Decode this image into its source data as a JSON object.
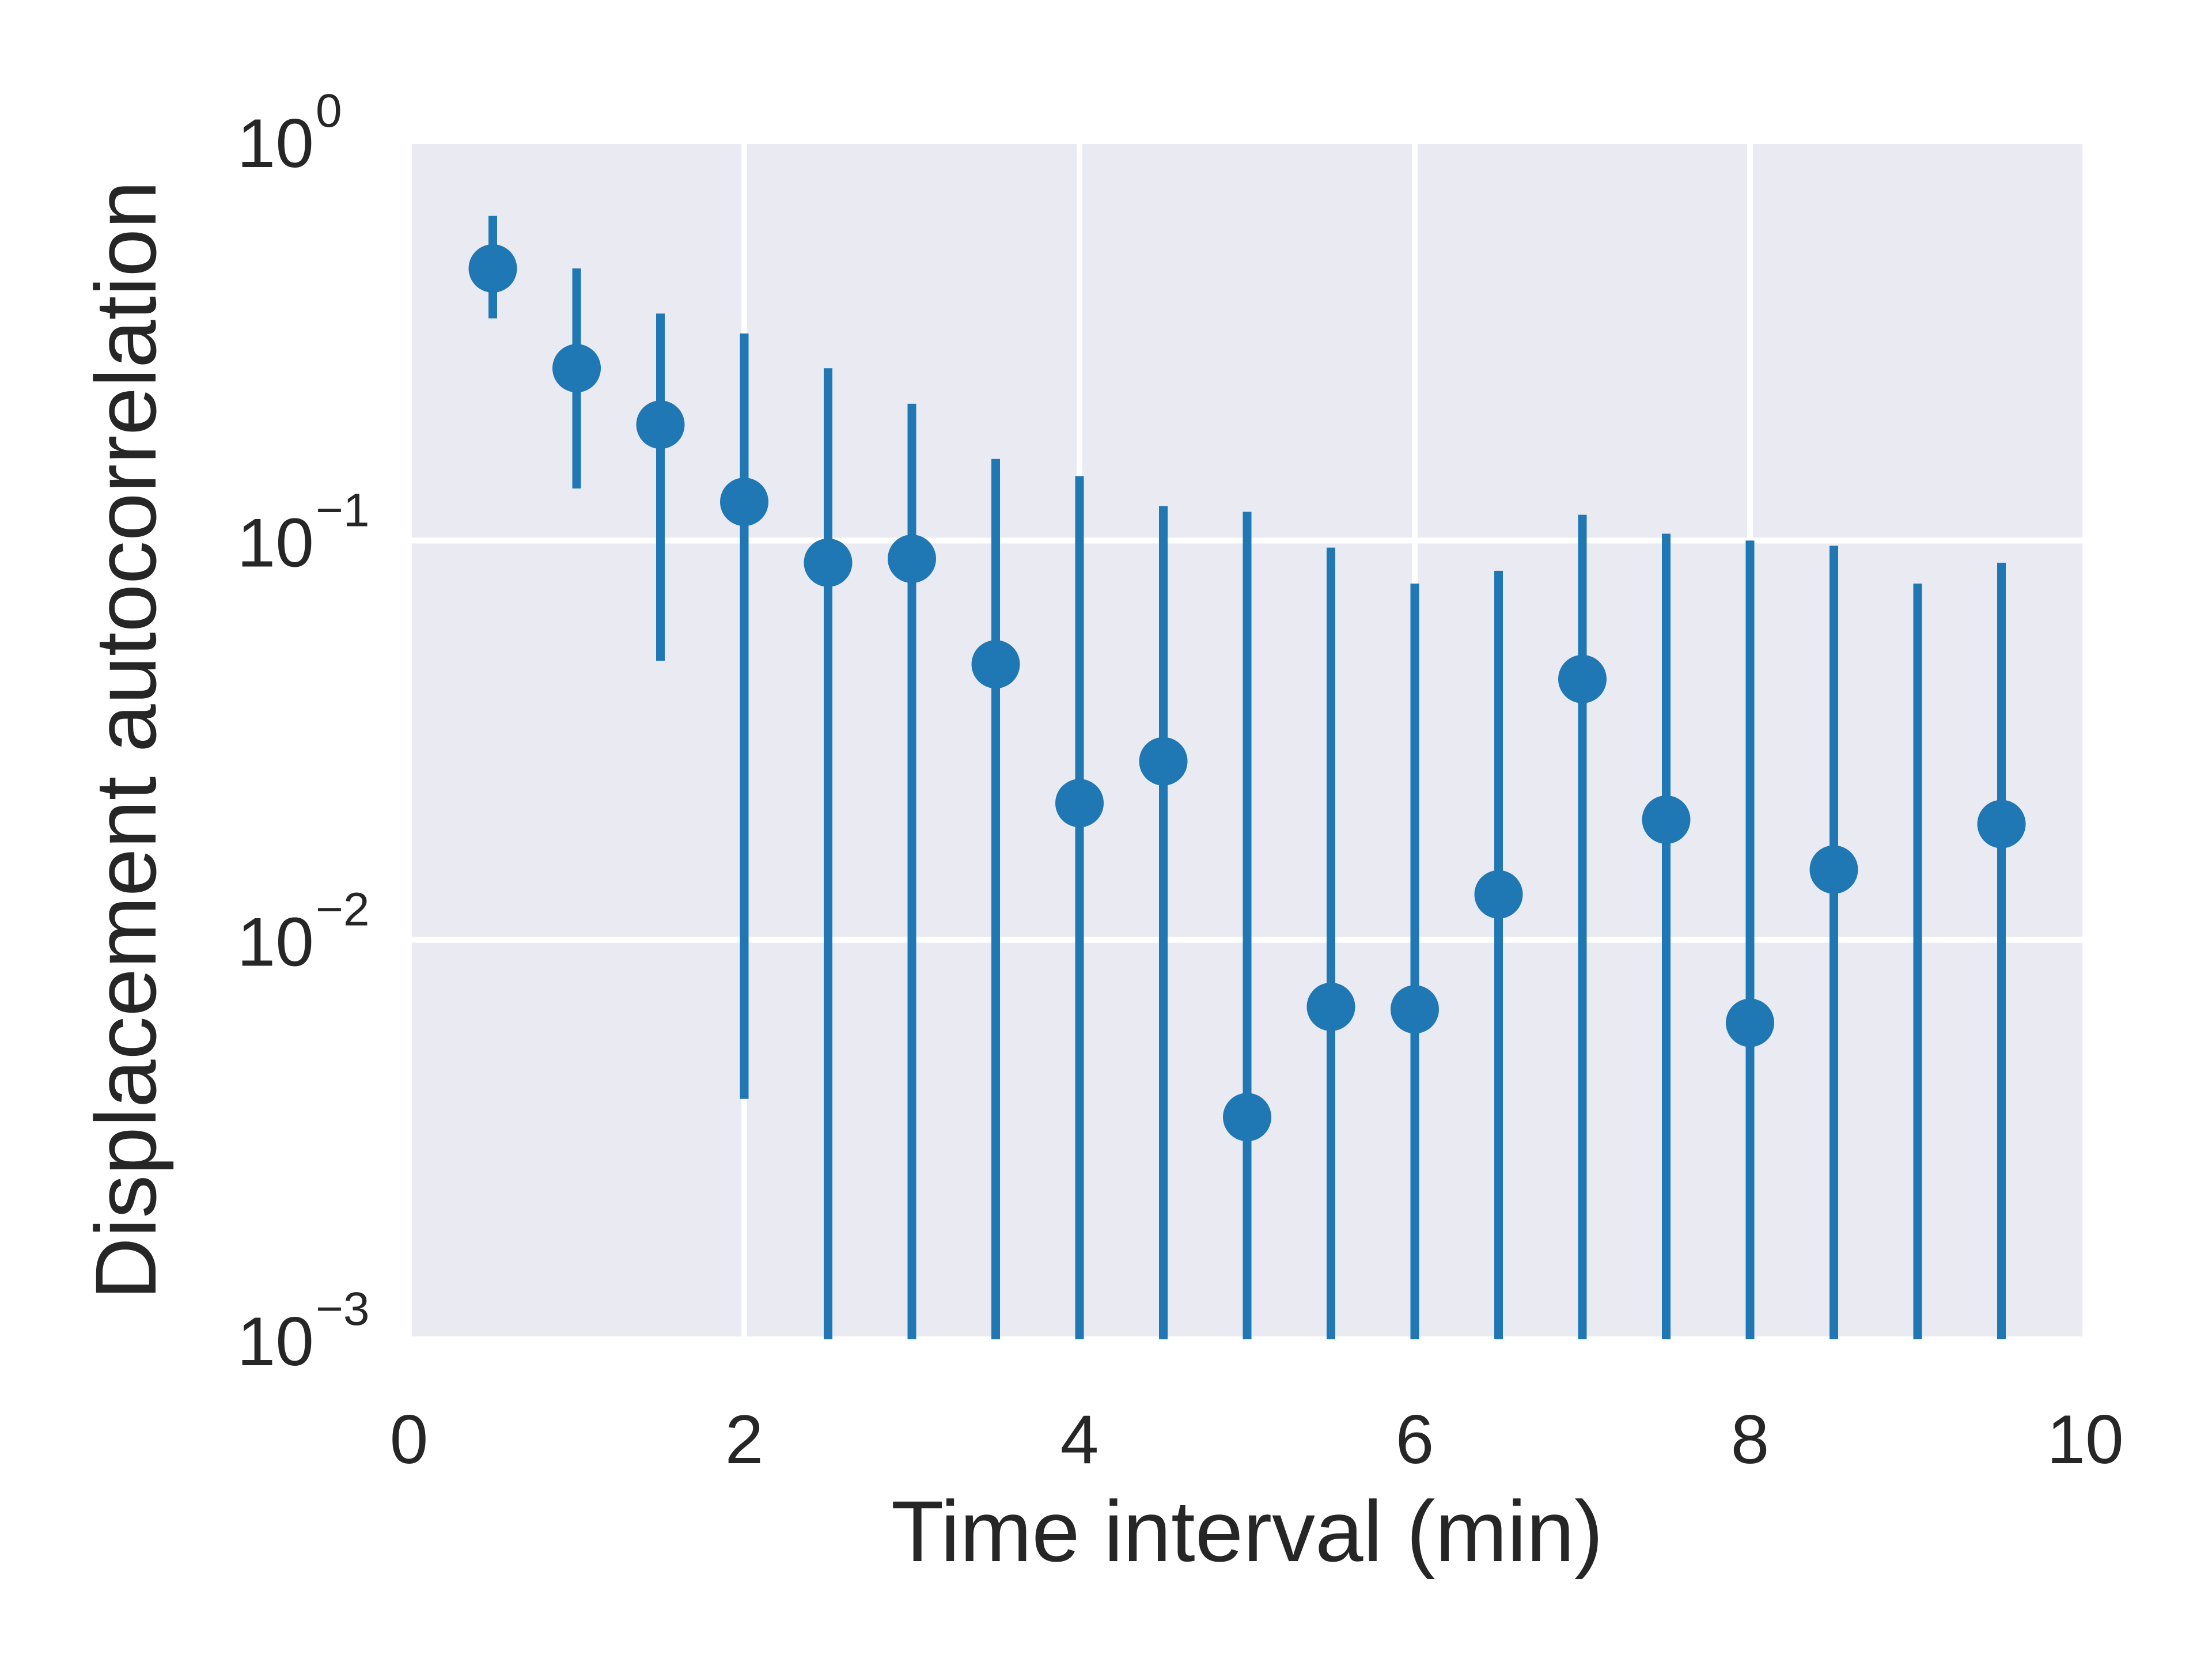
{
  "chart_data": {
    "type": "scatter",
    "title": "",
    "xlabel": "Time interval (min)",
    "ylabel": "Displacement autocorrelation",
    "xlim": [
      0,
      10
    ],
    "ylim": [
      0.001,
      1
    ],
    "yscale": "log",
    "grid": true,
    "legend": "none",
    "x_ticks": [
      {
        "value": 0,
        "label": "0"
      },
      {
        "value": 2,
        "label": "2"
      },
      {
        "value": 4,
        "label": "4"
      },
      {
        "value": 6,
        "label": "6"
      },
      {
        "value": 8,
        "label": "8"
      },
      {
        "value": 10,
        "label": "10"
      }
    ],
    "y_ticks": [
      {
        "value": 0.001,
        "base": "10",
        "exp": "−3"
      },
      {
        "value": 0.01,
        "base": "10",
        "exp": "−2"
      },
      {
        "value": 0.1,
        "base": "10",
        "exp": "−1"
      },
      {
        "value": 1,
        "base": "10",
        "exp": "0"
      }
    ],
    "series": [
      {
        "color": "#1f77b4",
        "points": [
          {
            "x": 0.5,
            "y": 0.48,
            "err_low": 0.36,
            "err_high": 0.65
          },
          {
            "x": 1.0,
            "y": 0.27,
            "err_low": 0.135,
            "err_high": 0.48
          },
          {
            "x": 1.5,
            "y": 0.195,
            "err_low": 0.05,
            "err_high": 0.37
          },
          {
            "x": 2.0,
            "y": 0.125,
            "err_low": 0.004,
            "err_high": 0.33
          },
          {
            "x": 2.5,
            "y": 0.088,
            "err_low": 0.001,
            "err_high": 0.27
          },
          {
            "x": 3.0,
            "y": 0.09,
            "err_low": 0.001,
            "err_high": 0.22
          },
          {
            "x": 3.5,
            "y": 0.049,
            "err_low": 0.001,
            "err_high": 0.16
          },
          {
            "x": 4.0,
            "y": 0.022,
            "err_low": 0.001,
            "err_high": 0.145
          },
          {
            "x": 4.5,
            "y": 0.028,
            "err_low": 0.001,
            "err_high": 0.122
          },
          {
            "x": 5.0,
            "y": 0.0036,
            "err_low": 0.001,
            "err_high": 0.118
          },
          {
            "x": 5.5,
            "y": 0.0068,
            "err_low": 0.001,
            "err_high": 0.096
          },
          {
            "x": 6.0,
            "y": 0.0067,
            "err_low": 0.001,
            "err_high": 0.078
          },
          {
            "x": 6.5,
            "y": 0.013,
            "err_low": 0.001,
            "err_high": 0.084
          },
          {
            "x": 7.0,
            "y": 0.045,
            "err_low": 0.001,
            "err_high": 0.116
          },
          {
            "x": 7.5,
            "y": 0.02,
            "err_low": 0.001,
            "err_high": 0.104
          },
          {
            "x": 8.0,
            "y": 0.0062,
            "err_low": 0.001,
            "err_high": 0.1
          },
          {
            "x": 8.5,
            "y": 0.015,
            "err_low": 0.001,
            "err_high": 0.097
          },
          {
            "x": 9.0,
            "y": null,
            "err_low": 0.001,
            "err_high": 0.078
          },
          {
            "x": 9.5,
            "y": 0.0195,
            "err_low": 0.001,
            "err_high": 0.088
          }
        ]
      }
    ]
  }
}
